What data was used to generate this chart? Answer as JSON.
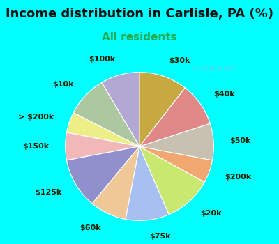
{
  "title": "Income distribution in Carlisle, PA (%)",
  "subtitle": "All residents",
  "title_fontsize": 13,
  "subtitle_fontsize": 11,
  "background_color": "#00FFFF",
  "chart_bg_color": "#e0f0e8",
  "watermark": "City-Data.com",
  "labels": [
    "$100k",
    "$10k",
    "> $200k",
    "$150k",
    "$125k",
    "$60k",
    "$75k",
    "$20k",
    "$200k",
    "$50k",
    "$40k",
    "$30k"
  ],
  "sizes": [
    8.5,
    9.0,
    4.5,
    6.0,
    11.0,
    8.0,
    9.5,
    10.5,
    5.0,
    8.0,
    9.5,
    10.5
  ],
  "colors": [
    "#b3a8d4",
    "#adc8a0",
    "#eeee88",
    "#f0b8b8",
    "#9090cc",
    "#f0c898",
    "#a8c0f0",
    "#c8e870",
    "#f0a870",
    "#c8c0b0",
    "#e08888",
    "#c8a840"
  ],
  "label_fontsize": 8,
  "label_color": "#222200",
  "label_distance": 1.22,
  "start_angle": 90
}
